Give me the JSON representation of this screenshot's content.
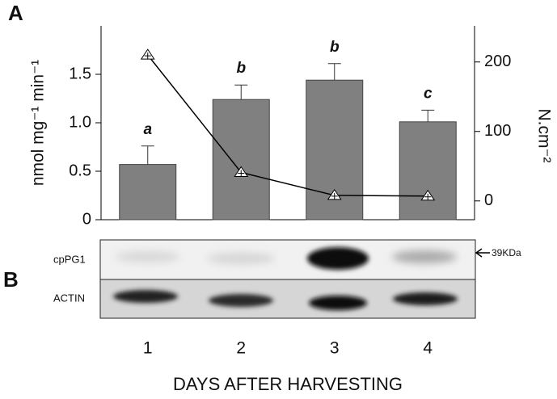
{
  "chart_data": {
    "type": "bar-line",
    "panel_a": "A",
    "panel_b": "B",
    "ylabel": "nmol mg⁻¹ min⁻¹",
    "y2label": "N.cm⁻²",
    "xlabel": "DAYS AFTER HARVESTING",
    "categories": [
      "1",
      "2",
      "3",
      "4"
    ],
    "ylim": [
      0,
      2.0
    ],
    "yticks": [
      0,
      0.5,
      {
        "value": 1,
        "label": "1.0"
      },
      1.5
    ],
    "y2lim": [
      -27,
      252
    ],
    "y2ticks": [
      0,
      100,
      200
    ],
    "series": [
      {
        "type": "bar",
        "color": "#808080",
        "values": [
          0.57,
          1.24,
          1.44,
          1.01
        ],
        "errors": [
          0.19,
          0.15,
          0.17,
          0.12
        ],
        "letters": [
          "a",
          "b",
          "b",
          "c"
        ]
      },
      {
        "type": "line",
        "axis": "y2",
        "color": "#000000",
        "values": [
          210,
          41,
          8,
          7
        ]
      }
    ],
    "blot": {
      "rows": [
        "cpPG1",
        "ACTIN"
      ],
      "marker": "39KDa"
    }
  }
}
